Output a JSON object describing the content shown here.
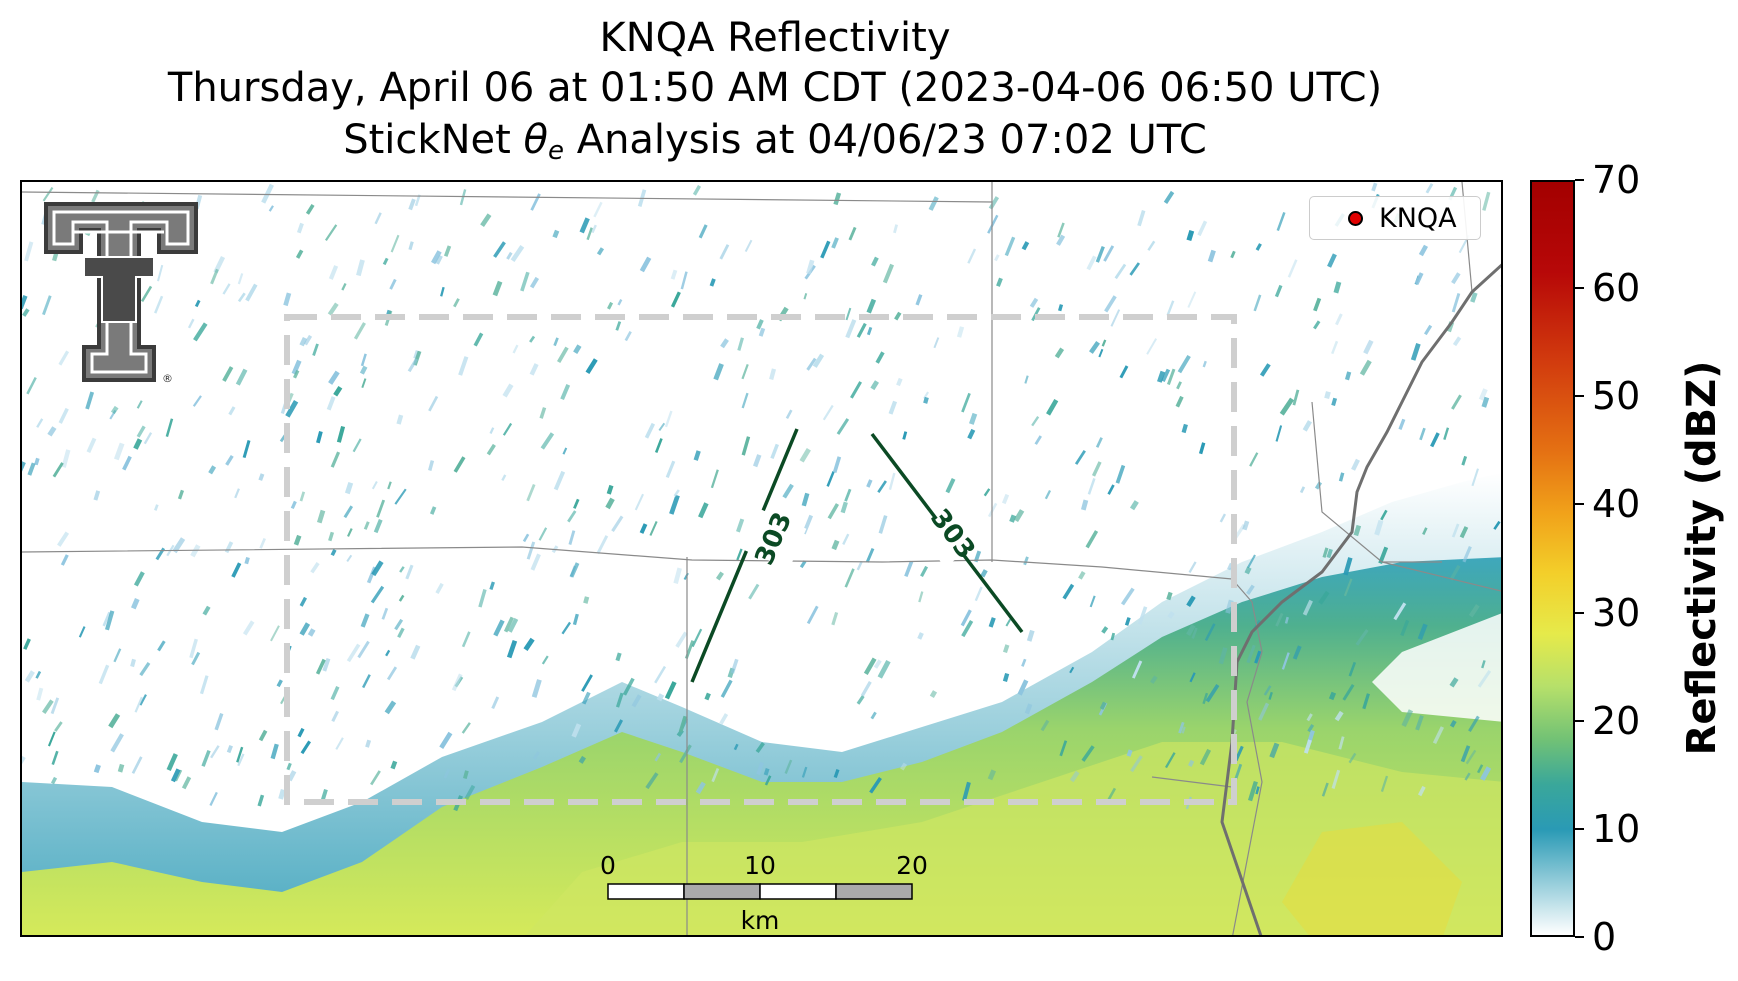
{
  "title": {
    "line1": "KNQA Reflectivity",
    "line2": "Thursday, April 06 at 01:50 AM CDT (2023-04-06 06:50 UTC)",
    "line3_prefix": "StickNet ",
    "line3_theta": "θ",
    "line3_sub": "e",
    "line3_suffix": " Analysis at 04/06/23 07:02 UTC"
  },
  "legend": {
    "label": "KNQA",
    "marker_color": "#e00000"
  },
  "contours": [
    {
      "label": "303",
      "color": "#0b4a24"
    },
    {
      "label": "303",
      "color": "#0b4a24"
    }
  ],
  "scalebar": {
    "ticks": [
      "0",
      "10",
      "20"
    ],
    "unit": "km"
  },
  "colorbar": {
    "label": "Reflectivity (dBZ)",
    "min": 0,
    "max": 70,
    "ticks": [
      "0",
      "10",
      "20",
      "30",
      "40",
      "50",
      "60",
      "70"
    ]
  },
  "logo": {
    "name": "texas-tech-double-t-logo",
    "text": "®"
  }
}
